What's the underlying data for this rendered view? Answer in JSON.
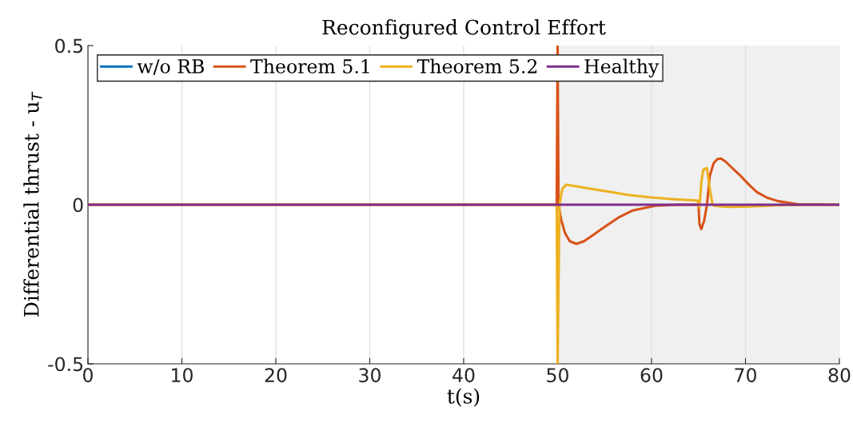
{
  "chart_data": {
    "type": "line",
    "title": "Reconfigured Control Effort",
    "xlabel": "t(s)",
    "ylabel": "Differential thrust - u$_{T}$",
    "xlim": [
      0,
      80
    ],
    "ylim": [
      -0.5,
      0.5
    ],
    "xticks": [
      0,
      10,
      20,
      30,
      40,
      50,
      60,
      70,
      80
    ],
    "yticks": [
      {
        "value": -0.5,
        "label": "-0.5"
      },
      0,
      0.5
    ],
    "grid": "x",
    "legend": "top left",
    "line_style": "solid",
    "marker": "none",
    "bands": [
      {
        "axis": "x",
        "from": 50,
        "to": 80,
        "color": "#f0f0f0"
      }
    ],
    "series": [
      {
        "name": "w/o RB",
        "color": "#0072bd"
      },
      {
        "name": "Theorem 5.1",
        "color": "#d95319",
        "x": [
          0,
          49.9,
          50.0,
          50.1,
          50.4,
          50.8,
          51.3,
          52.0,
          52.8,
          53.8,
          55.0,
          56.5,
          58.0,
          60.4,
          63,
          65.0,
          65.1,
          65.3,
          65.6,
          65.9,
          66.2,
          66.6,
          67.0,
          67.4,
          67.9,
          68.6,
          69.5,
          70.3,
          71.2,
          72.3,
          73.5,
          75.5,
          80
        ],
        "values": [
          0,
          0,
          0.5,
          0.0,
          -0.05,
          -0.09,
          -0.115,
          -0.123,
          -0.115,
          -0.095,
          -0.07,
          -0.04,
          -0.018,
          -0.003,
          0,
          0,
          -0.06,
          -0.077,
          -0.05,
          0.0,
          0.09,
          0.13,
          0.143,
          0.145,
          0.135,
          0.115,
          0.09,
          0.065,
          0.04,
          0.022,
          0.011,
          0.002,
          0
        ]
      },
      {
        "name": "Theorem 5.2",
        "color": "#edb120",
        "x": [
          0,
          49.9,
          50.0,
          50.2,
          50.5,
          50.9,
          52.0,
          53.5,
          55.6,
          57.5,
          59.8,
          62.5,
          64.9,
          65.1,
          65.3,
          65.5,
          65.9,
          66.2,
          66.5,
          66.8,
          68,
          70,
          72,
          74,
          80
        ],
        "values": [
          0,
          0,
          -0.5,
          0.0,
          0.05,
          0.063,
          0.058,
          0.05,
          0.04,
          0.031,
          0.023,
          0.017,
          0.013,
          -0.01,
          0.07,
          0.11,
          0.115,
          0.05,
          0.0,
          -0.004,
          -0.007,
          -0.006,
          -0.004,
          -0.001,
          0
        ]
      },
      {
        "name": "Healthy",
        "color": "#7e2f8e",
        "x": [
          0,
          80
        ],
        "values": [
          0,
          0
        ]
      }
    ]
  }
}
